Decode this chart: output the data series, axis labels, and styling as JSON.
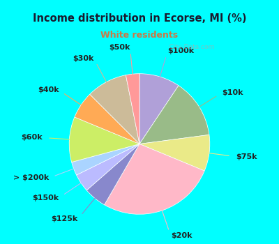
{
  "title": "Income distribution in Ecorse, MI (%)",
  "subtitle": "White residents",
  "title_color": "#1a1a2e",
  "subtitle_color": "#cc7744",
  "background_outer": "#00ffff",
  "background_inner": "#e8f5ee",
  "labels": [
    "$100k",
    "$10k",
    "$75k",
    "$20k",
    "$125k",
    "$150k",
    "> $200k",
    "$60k",
    "$40k",
    "$30k",
    "$50k"
  ],
  "values": [
    9,
    13,
    8,
    26,
    5,
    4,
    3,
    10,
    6,
    9,
    3
  ],
  "colors": [
    "#b0a0d8",
    "#99bb88",
    "#eaea88",
    "#ffb8c8",
    "#8888cc",
    "#bbbbff",
    "#aad4ff",
    "#ccee66",
    "#ffaa55",
    "#ccbb99",
    "#ff9999"
  ],
  "startangle": 90,
  "label_fontsize": 8,
  "watermark": "   City-Data.com"
}
